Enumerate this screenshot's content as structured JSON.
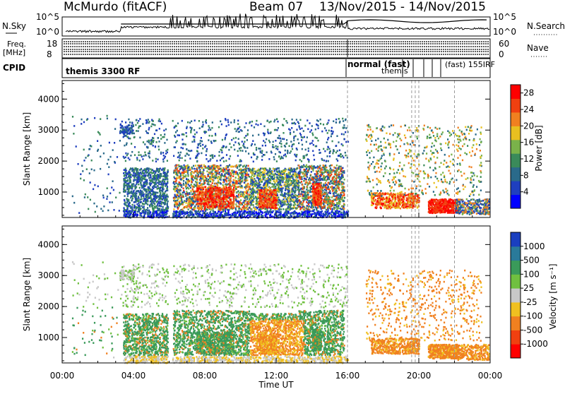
{
  "header": {
    "station": "McMurdo (fitACF)",
    "beam": "Beam 07",
    "dates": "13/Nov/2015 - 14/Nov/2015"
  },
  "top_panel": {
    "left_label": "N.Sky",
    "right_label": "N.Search",
    "left_ticks": [
      "10^5",
      "10^0"
    ],
    "right_ticks": [
      "10^5",
      "10^0"
    ]
  },
  "freq_panel": {
    "left_label_1": "Freq.",
    "left_label_2": "[MHz]",
    "right_label": "Nave",
    "left_ticks": [
      "18",
      "8"
    ],
    "right_ticks": [
      "60",
      "0"
    ]
  },
  "cpid_panel": {
    "label": "CPID",
    "annotations": [
      "themis 3300 RF",
      "normal (fast)",
      "themis",
      "(fast) 155IRF"
    ]
  },
  "chart_data": [
    {
      "type": "heatmap",
      "title": "",
      "xlabel": "Time UT",
      "ylabel": "Slant Range [km]",
      "x_ticks": [
        "00:00",
        "04:00",
        "08:00",
        "12:00",
        "16:00",
        "20:00",
        "00:00"
      ],
      "y_ticks": [
        1000,
        2000,
        3000,
        4000
      ],
      "xlim_hours": [
        0,
        24
      ],
      "ylim": [
        180,
        4600
      ],
      "colorbar_label": "Power [dB]",
      "colorbar_ticks": [
        4,
        8,
        12,
        16,
        20,
        24,
        28
      ],
      "colorbar_range": [
        0,
        30
      ],
      "colors": [
        "#0000ff",
        "#1f3fbf",
        "#2a6a8a",
        "#3a8a5a",
        "#7ab24a",
        "#e8c020",
        "#f08020",
        "#f04010",
        "#ff0000"
      ]
    },
    {
      "type": "heatmap",
      "title": "",
      "xlabel": "Time UT",
      "ylabel": "Slant Range [km]",
      "x_ticks": [
        "00:00",
        "04:00",
        "08:00",
        "12:00",
        "16:00",
        "20:00",
        "00:00"
      ],
      "y_ticks": [
        1000,
        2000,
        3000,
        4000
      ],
      "xlim_hours": [
        0,
        24
      ],
      "ylim": [
        180,
        4600
      ],
      "colorbar_label": "Velocity [m s⁻¹]",
      "colorbar_ticks": [
        1000,
        500,
        100,
        25,
        -25,
        -100,
        -500,
        -1000
      ],
      "colors": [
        "#1a3fbf",
        "#2a7a9a",
        "#3a9a5a",
        "#70c040",
        "#c8c8c8",
        "#f0c020",
        "#f08020",
        "#f04010",
        "#ff0000"
      ]
    }
  ]
}
